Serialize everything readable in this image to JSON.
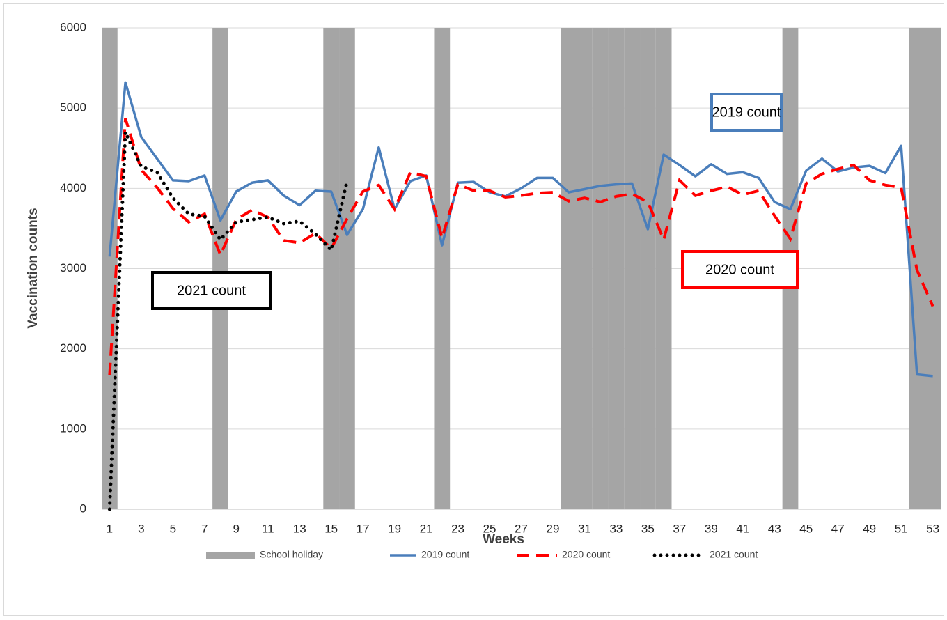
{
  "chart_data": {
    "type": "line",
    "x_label": "Weeks",
    "y_label": "Vaccination counts",
    "x": [
      1,
      2,
      3,
      4,
      5,
      6,
      7,
      8,
      9,
      10,
      11,
      12,
      13,
      14,
      15,
      16,
      17,
      18,
      19,
      20,
      21,
      22,
      23,
      24,
      25,
      26,
      27,
      28,
      29,
      30,
      31,
      32,
      33,
      34,
      35,
      36,
      37,
      38,
      39,
      40,
      41,
      42,
      43,
      44,
      45,
      46,
      47,
      48,
      49,
      50,
      51,
      52,
      53
    ],
    "xlim": [
      0.5,
      53.5
    ],
    "xticks": [
      1,
      3,
      5,
      7,
      9,
      11,
      13,
      15,
      17,
      19,
      21,
      23,
      25,
      27,
      29,
      31,
      33,
      35,
      37,
      39,
      41,
      43,
      45,
      47,
      49,
      51,
      53
    ],
    "ylim": [
      0,
      6000
    ],
    "yticks": [
      0,
      1000,
      2000,
      3000,
      4000,
      5000,
      6000
    ],
    "grid": true,
    "legend": "bottom",
    "series": [
      {
        "name": "School holiday",
        "color": "#a5a5a5",
        "style": "bar",
        "values": [
          6000,
          null,
          null,
          null,
          null,
          null,
          null,
          6000,
          null,
          null,
          null,
          null,
          null,
          null,
          6000,
          6000,
          null,
          null,
          null,
          null,
          null,
          6000,
          null,
          null,
          null,
          null,
          null,
          null,
          null,
          6000,
          6000,
          6000,
          6000,
          6000,
          6000,
          6000,
          null,
          null,
          null,
          null,
          null,
          null,
          null,
          6000,
          null,
          null,
          null,
          null,
          null,
          null,
          null,
          6000,
          6000
        ]
      },
      {
        "name": "2019 count",
        "color": "#4a7ebb",
        "style": "solid",
        "values": [
          3150,
          5320,
          4640,
          4370,
          4100,
          4090,
          4160,
          3600,
          3960,
          4070,
          4100,
          3910,
          3790,
          3970,
          3960,
          3420,
          3740,
          4510,
          3740,
          4090,
          4160,
          3290,
          4070,
          4080,
          3950,
          3900,
          4000,
          4130,
          4130,
          3950,
          3990,
          4030,
          4050,
          4060,
          3490,
          4420,
          4290,
          4150,
          4300,
          4180,
          4200,
          4130,
          3830,
          3740,
          4220,
          4370,
          4210,
          4260,
          4280,
          4190,
          4530,
          1680,
          1660
        ]
      },
      {
        "name": "2020 count",
        "color": "#ff0000",
        "style": "dashed",
        "values": [
          1670,
          4870,
          4230,
          4010,
          3750,
          3580,
          3680,
          3170,
          3610,
          3730,
          3640,
          3350,
          3320,
          3440,
          3250,
          3620,
          3960,
          4040,
          3740,
          4200,
          4150,
          3380,
          4050,
          3970,
          3970,
          3890,
          3910,
          3940,
          3950,
          3840,
          3880,
          3830,
          3900,
          3930,
          3830,
          3360,
          4100,
          3910,
          3970,
          4020,
          3920,
          3970,
          3660,
          3370,
          4060,
          4180,
          4240,
          4290,
          4100,
          4040,
          4010,
          2980,
          2530
        ]
      },
      {
        "name": "2021 count",
        "color": "#000000",
        "style": "dotted",
        "values": [
          0,
          4700,
          4270,
          4200,
          3880,
          3680,
          3650,
          3360,
          3580,
          3610,
          3640,
          3560,
          3590,
          3430,
          3230,
          4090,
          null,
          null,
          null,
          null,
          null,
          null,
          null,
          null,
          null,
          null,
          null,
          null,
          null,
          null,
          null,
          null,
          null,
          null,
          null,
          null,
          null,
          null,
          null,
          null,
          null,
          null,
          null,
          null,
          null,
          null,
          null,
          null,
          null,
          null,
          null,
          null,
          null
        ]
      }
    ],
    "annotations": [
      {
        "text": "2019 count",
        "color": "#4a7ebb"
      },
      {
        "text": "2020 count",
        "color": "#ff0000"
      },
      {
        "text": "2021 count",
        "color": "#000000"
      }
    ]
  }
}
